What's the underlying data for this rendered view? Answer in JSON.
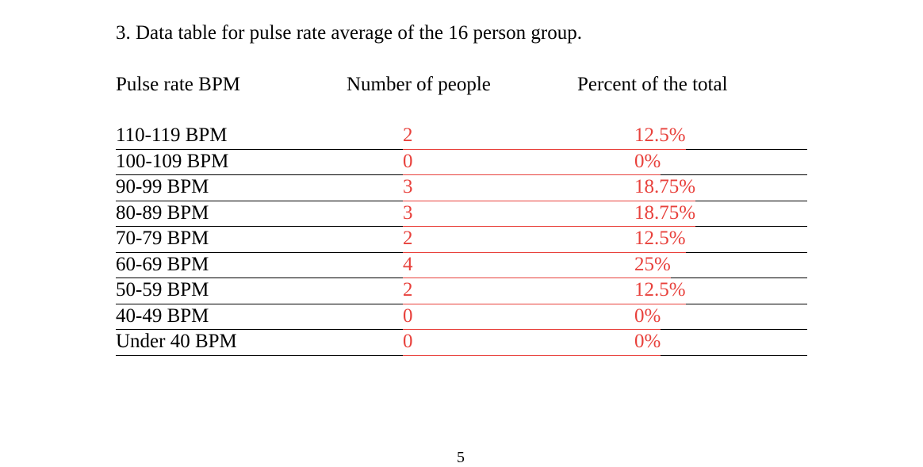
{
  "header": {
    "title": "3. Data table for pulse rate average of the 16 person group."
  },
  "table": {
    "columns": [
      "Pulse rate BPM",
      "Number of people",
      "Percent of the total"
    ],
    "rows": [
      [
        "110-119 BPM",
        "2",
        "12.5%"
      ],
      [
        "100-109 BPM",
        "0",
        "0%"
      ],
      [
        "90-99 BPM",
        "3",
        "18.75%"
      ],
      [
        "80-89 BPM",
        "3",
        "18.75%"
      ],
      [
        "70-79 BPM",
        "2",
        "12.5%"
      ],
      [
        "60-69 BPM",
        "4",
        "25%"
      ],
      [
        "50-59 BPM",
        "2",
        "12.5%"
      ],
      [
        "40-49 BPM",
        "0",
        "0%"
      ],
      [
        "Under 40 BPM",
        "0",
        "0%"
      ]
    ]
  },
  "footer": {
    "page_number": "5"
  }
}
